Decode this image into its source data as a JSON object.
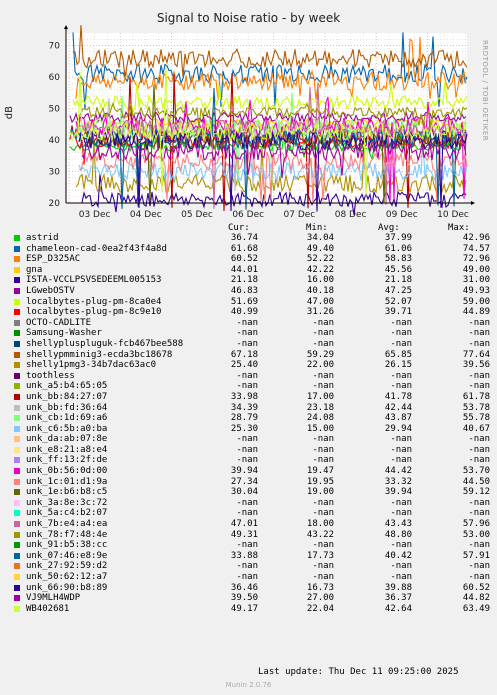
{
  "title": "Signal to Noise ratio - by week",
  "watermark": "RRDTOOL / TOBI OETIKER",
  "ylabel": "dB",
  "legend_headers": {
    "cur": "Cur:",
    "min": "Min:",
    "avg": "Avg:",
    "max": "Max:"
  },
  "last_update": "Last update: Thu Dec 11 09:25:00 2025",
  "footer": "Munin 2.0.76",
  "chart_data": {
    "type": "line",
    "x_ticks": [
      "03 Dec",
      "04 Dec",
      "05 Dec",
      "06 Dec",
      "07 Dec",
      "08 Dec",
      "09 Dec",
      "10 Dec"
    ],
    "y_ticks": [
      20,
      30,
      40,
      50,
      60,
      70
    ],
    "ylim": [
      20,
      74
    ],
    "grid": true,
    "series": [
      {
        "name": "astrid",
        "color": "#00cc00",
        "cur": "36.74",
        "min": "34.04",
        "avg": "37.99",
        "max": "42.96"
      },
      {
        "name": "chameleon-cad-0ea2f43f4a8d",
        "color": "#0066b3",
        "cur": "61.68",
        "min": "49.40",
        "avg": "61.06",
        "max": "74.57"
      },
      {
        "name": "ESP_D325AC",
        "color": "#ff8000",
        "cur": "60.52",
        "min": "52.22",
        "avg": "58.83",
        "max": "72.96"
      },
      {
        "name": "gna",
        "color": "#ffcc00",
        "cur": "44.01",
        "min": "42.22",
        "avg": "45.56",
        "max": "49.00"
      },
      {
        "name": "ISTA-VCCLPSVSEDEEML005153",
        "color": "#330099",
        "cur": "21.18",
        "min": "16.00",
        "avg": "21.18",
        "max": "31.00"
      },
      {
        "name": "LGwebOSTV",
        "color": "#990099",
        "cur": "46.83",
        "min": "40.18",
        "avg": "47.25",
        "max": "49.93"
      },
      {
        "name": "localbytes-plug-pm-8ca0e4",
        "color": "#ccff00",
        "cur": "51.69",
        "min": "47.00",
        "avg": "52.07",
        "max": "59.00"
      },
      {
        "name": "localbytes-plug-pm-8c9e10",
        "color": "#ff0000",
        "cur": "40.99",
        "min": "31.26",
        "avg": "39.71",
        "max": "44.89"
      },
      {
        "name": "OCTO-CADLITE",
        "color": "#808080",
        "cur": "-nan",
        "min": "-nan",
        "avg": "-nan",
        "max": "-nan"
      },
      {
        "name": "Samsung-Washer",
        "color": "#008f00",
        "cur": "-nan",
        "min": "-nan",
        "avg": "-nan",
        "max": "-nan"
      },
      {
        "name": "shellypluspluguk-fcb467bee588",
        "color": "#00487d",
        "cur": "-nan",
        "min": "-nan",
        "avg": "-nan",
        "max": "-nan"
      },
      {
        "name": "shellypmminig3-ecda3bc18678",
        "color": "#b35a00",
        "cur": "67.18",
        "min": "59.29",
        "avg": "65.85",
        "max": "77.64"
      },
      {
        "name": "shelly1pmg3-34b7dac63ac0",
        "color": "#b38f00",
        "cur": "25.40",
        "min": "22.00",
        "avg": "26.15",
        "max": "39.56"
      },
      {
        "name": "toothless",
        "color": "#6b006b",
        "cur": "-nan",
        "min": "-nan",
        "avg": "-nan",
        "max": "-nan"
      },
      {
        "name": "unk_a5:b4:65:05",
        "color": "#8fb300",
        "cur": "-nan",
        "min": "-nan",
        "avg": "-nan",
        "max": "-nan"
      },
      {
        "name": "unk_bb:84:27:07",
        "color": "#b30000",
        "cur": "33.98",
        "min": "17.00",
        "avg": "41.78",
        "max": "61.78"
      },
      {
        "name": "unk_bb:fd:36:64",
        "color": "#bebebe",
        "cur": "34.39",
        "min": "23.18",
        "avg": "42.44",
        "max": "53.78"
      },
      {
        "name": "unk_cb:1d:69:a6",
        "color": "#80ff80",
        "cur": "28.79",
        "min": "24.08",
        "avg": "43.87",
        "max": "55.78"
      },
      {
        "name": "unk_c6:5b:a0:ba",
        "color": "#80c9ff",
        "cur": "25.30",
        "min": "15.00",
        "avg": "29.94",
        "max": "40.67"
      },
      {
        "name": "unk_da:ab:07:8e",
        "color": "#ffc080",
        "cur": "-nan",
        "min": "-nan",
        "avg": "-nan",
        "max": "-nan"
      },
      {
        "name": "unk_e8:21:a8:e4",
        "color": "#ffe680",
        "cur": "-nan",
        "min": "-nan",
        "avg": "-nan",
        "max": "-nan"
      },
      {
        "name": "unk_ff:13:2f:de",
        "color": "#aa80ff",
        "cur": "-nan",
        "min": "-nan",
        "avg": "-nan",
        "max": "-nan"
      },
      {
        "name": "unk_0b:56:0d:00",
        "color": "#ee00cc",
        "cur": "39.94",
        "min": "19.47",
        "avg": "44.42",
        "max": "53.70"
      },
      {
        "name": "unk_1c:01:d1:9a",
        "color": "#ff8080",
        "cur": "27.34",
        "min": "19.95",
        "avg": "33.32",
        "max": "44.50"
      },
      {
        "name": "unk_1e:b6:b8:c5",
        "color": "#666600",
        "cur": "30.04",
        "min": "19.00",
        "avg": "39.94",
        "max": "59.12"
      },
      {
        "name": "unk_3a:8e:3c:72",
        "color": "#ffbfff",
        "cur": "-nan",
        "min": "-nan",
        "avg": "-nan",
        "max": "-nan"
      },
      {
        "name": "unk_5a:c4:b2:07",
        "color": "#00ffcc",
        "cur": "-nan",
        "min": "-nan",
        "avg": "-nan",
        "max": "-nan"
      },
      {
        "name": "unk_7b:e4:a4:ea",
        "color": "#cc6699",
        "cur": "47.01",
        "min": "18.00",
        "avg": "43.43",
        "max": "57.96"
      },
      {
        "name": "unk_78:f7:48:4e",
        "color": "#999900",
        "cur": "49.31",
        "min": "43.22",
        "avg": "48.80",
        "max": "53.00"
      },
      {
        "name": "unk_91:b5:38:cc",
        "color": "#009900",
        "cur": "-nan",
        "min": "-nan",
        "avg": "-nan",
        "max": "-nan"
      },
      {
        "name": "unk_07:46:e8:9e",
        "color": "#006699",
        "cur": "33.88",
        "min": "17.73",
        "avg": "40.42",
        "max": "57.91"
      },
      {
        "name": "unk_27:92:59:d2",
        "color": "#e6741f",
        "cur": "-nan",
        "min": "-nan",
        "avg": "-nan",
        "max": "-nan"
      },
      {
        "name": "unk_50:62:12:a7",
        "color": "#ffd633",
        "cur": "-nan",
        "min": "-nan",
        "avg": "-nan",
        "max": "-nan"
      },
      {
        "name": "unk_66:90:b8:89",
        "color": "#2e0099",
        "cur": "36.46",
        "min": "16.73",
        "avg": "39.88",
        "max": "60.52"
      },
      {
        "name": "VJ9MLH4WDP",
        "color": "#a3009d",
        "cur": "39.50",
        "min": "27.00",
        "avg": "36.37",
        "max": "44.82"
      },
      {
        "name": "WB402681",
        "color": "#ccff33",
        "cur": "49.17",
        "min": "22.04",
        "avg": "42.64",
        "max": "63.49"
      }
    ]
  }
}
